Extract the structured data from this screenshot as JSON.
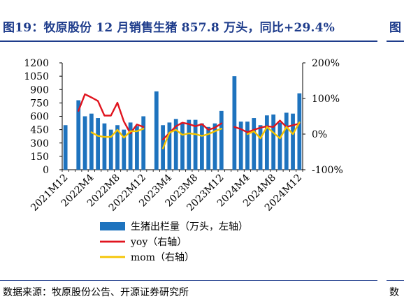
{
  "figure": {
    "title": "图19：牧原股份 12 月销售生猪 857.8 万头，同比+29.4%",
    "next_title_fragment": "图",
    "source": "数据来源：牧原股份公告、开源证券研究所",
    "next_source_fragment": "数"
  },
  "colors": {
    "title": "#1f3d8c",
    "bars": "#1e73be",
    "yoy": "#e0141e",
    "mom": "#f5c400"
  },
  "chart_data": {
    "type": "bar",
    "x": [
      "2021M12",
      "2022M1",
      "2022M2",
      "2022M3",
      "2022M4",
      "2022M5",
      "2022M6",
      "2022M7",
      "2022M8",
      "2022M9",
      "2022M10",
      "2022M11",
      "2022M12",
      "2023M1",
      "2023M2",
      "2023M3",
      "2023M4",
      "2023M5",
      "2023M6",
      "2023M7",
      "2023M8",
      "2023M9",
      "2023M10",
      "2023M11",
      "2023M12",
      "2024M1",
      "2024M2",
      "2024M3",
      "2024M4",
      "2024M5",
      "2024M6",
      "2024M7",
      "2024M8",
      "2024M9",
      "2024M10",
      "2024M11",
      "2024M12"
    ],
    "x_tick_labels": [
      "2021M12",
      "2022M4",
      "2022M8",
      "2022M12",
      "2023M4",
      "2023M8",
      "2023M12",
      "2024M4",
      "2024M8",
      "2024M12"
    ],
    "series": [
      {
        "name": "生猪出栏量（万头，左轴）",
        "type": "bar",
        "axis": "left",
        "values": [
          500,
          null,
          780,
          600,
          630,
          580,
          520,
          450,
          500,
          450,
          530,
          490,
          600,
          null,
          880,
          500,
          530,
          570,
          530,
          560,
          560,
          520,
          480,
          520,
          660,
          null,
          1050,
          540,
          540,
          580,
          500,
          610,
          620,
          530,
          640,
          630,
          858
        ]
      },
      {
        "name": "yoy（右轴）",
        "type": "line",
        "axis": "right",
        "values": [
          null,
          null,
          65,
          112,
          103,
          93,
          52,
          52,
          88,
          35,
          2,
          27,
          20,
          null,
          null,
          -15,
          3,
          22,
          32,
          28,
          22,
          28,
          12,
          18,
          30,
          null,
          20,
          14,
          5,
          12,
          18,
          22,
          20,
          38,
          20,
          25,
          29.4
        ]
      },
      {
        "name": "mom（右轴）",
        "type": "line",
        "axis": "right",
        "values": [
          null,
          null,
          null,
          null,
          5,
          -5,
          -8,
          -8,
          12,
          -10,
          8,
          8,
          15,
          null,
          null,
          -40,
          4,
          12,
          -2,
          2,
          0,
          -5,
          0,
          8,
          15,
          null,
          null,
          null,
          0,
          8,
          -12,
          20,
          4,
          -12,
          20,
          0,
          33
        ]
      }
    ],
    "y_left": {
      "min": 0,
      "max": 1200,
      "ticks": [
        "0",
        "150",
        "300",
        "450",
        "600",
        "750",
        "900",
        "1050",
        "1200"
      ]
    },
    "y_right": {
      "min": -100,
      "max": 200,
      "ticks": [
        "-100%",
        "0%",
        "100%",
        "200%"
      ]
    },
    "legend_position": "bottom",
    "grid": false
  }
}
